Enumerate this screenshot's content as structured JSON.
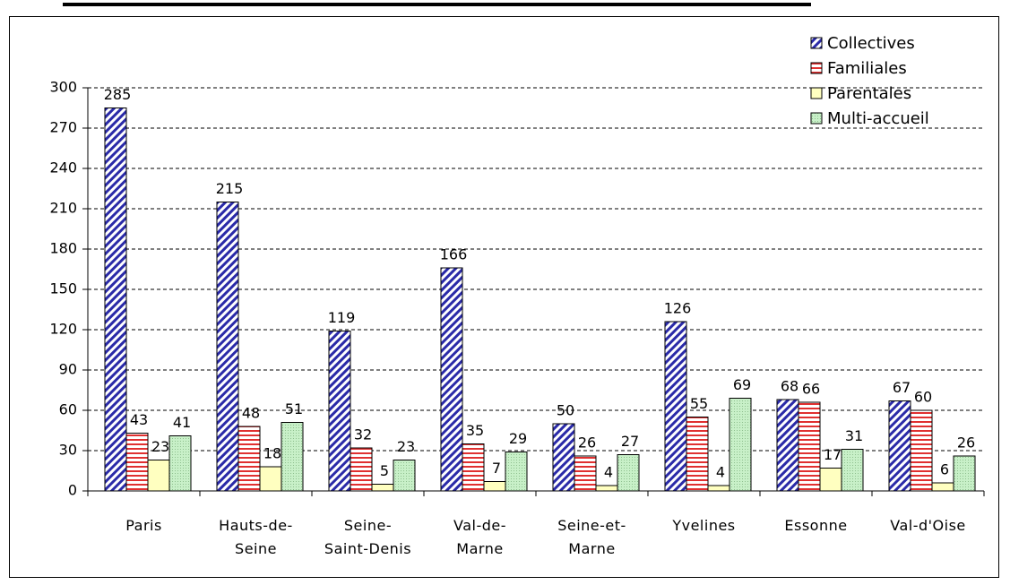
{
  "chart_data": {
    "type": "bar",
    "categories": [
      "Paris",
      "Hauts-de-\nSeine",
      "Seine-\nSaint-Denis",
      "Val-de-\nMarne",
      "Seine-et-\nMarne",
      "Yvelines",
      "Essonne",
      "Val-d'Oise"
    ],
    "series": [
      {
        "name": "Collectives",
        "color": "#2a2aa8",
        "pattern": "diagonal",
        "values": [
          285,
          215,
          119,
          166,
          50,
          126,
          68,
          67
        ]
      },
      {
        "name": "Familiales",
        "color": "#e03030",
        "pattern": "horizontal",
        "values": [
          43,
          48,
          32,
          35,
          26,
          55,
          66,
          60
        ]
      },
      {
        "name": "Parentales",
        "color": "#ffffc0",
        "pattern": "none",
        "values": [
          23,
          18,
          5,
          7,
          4,
          4,
          17,
          6
        ]
      },
      {
        "name": "Multi-accueil",
        "color": "#c8f0c8",
        "pattern": "dots",
        "values": [
          41,
          51,
          23,
          29,
          27,
          69,
          31,
          26
        ]
      }
    ],
    "ylim": [
      0,
      300
    ],
    "yticks": [
      0,
      30,
      60,
      90,
      120,
      150,
      180,
      210,
      240,
      270,
      300
    ],
    "grid": true,
    "legend": "top-right"
  }
}
